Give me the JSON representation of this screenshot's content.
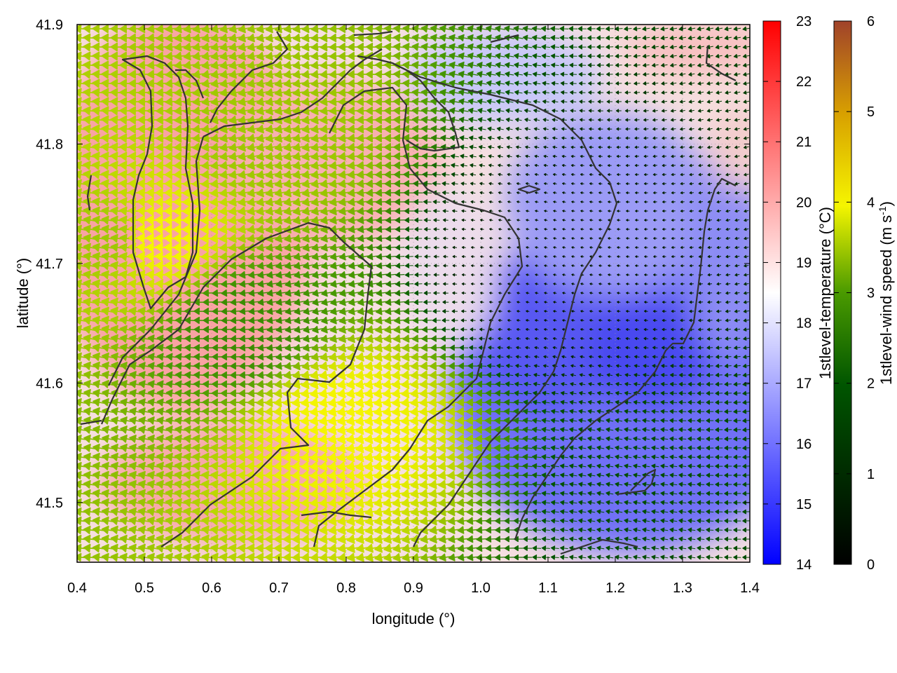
{
  "chart_data": {
    "type": "heatmap",
    "xlabel": "longitude (°)",
    "ylabel": "latitude (°)",
    "xlim": [
      0.4,
      1.4
    ],
    "ylim": [
      41.45,
      41.9
    ],
    "x_ticks": [
      "0.4",
      "0.5",
      "0.6",
      "0.7",
      "0.8",
      "0.9",
      "1.0",
      "1.1",
      "1.2",
      "1.3",
      "1.4"
    ],
    "y_ticks": [
      "41.5",
      "41.6",
      "41.7",
      "41.8",
      "41.9"
    ],
    "x_tick_values": [
      0.4,
      0.5,
      0.6,
      0.7,
      0.8,
      0.9,
      1.0,
      1.1,
      1.2,
      1.3,
      1.4
    ],
    "y_tick_values": [
      41.5,
      41.6,
      41.7,
      41.8,
      41.9
    ],
    "grid": true,
    "temperature_colorbar": {
      "label": "1stlevel-temperature (°C)",
      "range": [
        14,
        23
      ],
      "ticks": [
        "14",
        "15",
        "16",
        "17",
        "18",
        "19",
        "20",
        "21",
        "22",
        "23"
      ],
      "colors": [
        "#0000ff",
        "#ffffff",
        "#ff0000"
      ]
    },
    "wind_colorbar": {
      "label": "1stlevel-wind speed (m s",
      "label_sup": "-1",
      "label_end": ")",
      "range": [
        0,
        6
      ],
      "ticks": [
        "0",
        "1",
        "2",
        "3",
        "4",
        "5",
        "6"
      ],
      "colors": [
        "#000000",
        "#006400",
        "#ffff00",
        "#a0422a"
      ]
    },
    "temperature_field": {
      "description_regions": [
        {
          "lon": 0.55,
          "lat": 41.7,
          "temp": 20.5
        },
        {
          "lon": 0.75,
          "lat": 41.78,
          "temp": 20.2
        },
        {
          "lon": 0.7,
          "lat": 41.55,
          "temp": 20.0
        },
        {
          "lon": 0.95,
          "lat": 41.88,
          "temp": 19.5
        },
        {
          "lon": 1.1,
          "lat": 41.62,
          "temp": 15.5
        },
        {
          "lon": 1.25,
          "lat": 41.63,
          "temp": 15.0
        },
        {
          "lon": 1.2,
          "lat": 41.78,
          "temp": 16.5
        },
        {
          "lon": 1.35,
          "lat": 41.85,
          "temp": 20.0
        }
      ]
    },
    "wind_field": {
      "samples": [
        {
          "lon": 0.45,
          "lat": 41.72,
          "speed": 3.5
        },
        {
          "lon": 0.52,
          "lat": 41.72,
          "speed": 4.0
        },
        {
          "lon": 0.7,
          "lat": 41.8,
          "speed": 3.5
        },
        {
          "lon": 0.8,
          "lat": 41.57,
          "speed": 4.0
        },
        {
          "lon": 0.65,
          "lat": 41.65,
          "speed": 2.8
        },
        {
          "lon": 1.1,
          "lat": 41.7,
          "speed": 0.6
        },
        {
          "lon": 1.3,
          "lat": 41.5,
          "speed": 1.8
        }
      ]
    }
  }
}
